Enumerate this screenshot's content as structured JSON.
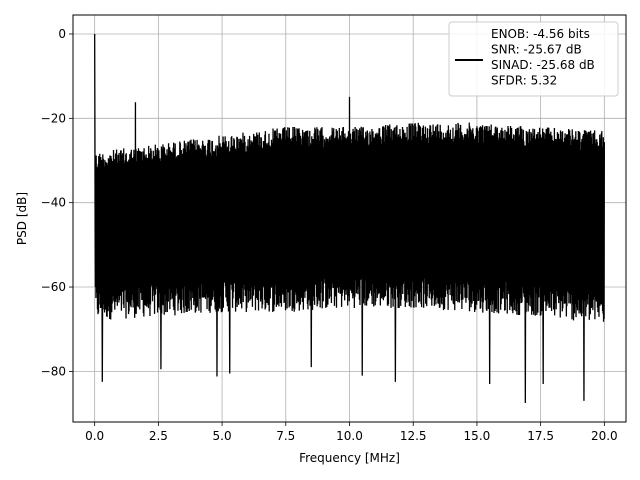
{
  "chart_data": {
    "type": "line",
    "title": "",
    "xlabel": "Frequency [MHz]",
    "ylabel": "PSD [dB]",
    "xlim": [
      -0.85,
      20.85
    ],
    "ylim": [
      -92,
      4.5
    ],
    "x_ticks": [
      0.0,
      2.5,
      5.0,
      7.5,
      10.0,
      12.5,
      15.0,
      17.5,
      20.0
    ],
    "x_tick_labels": [
      "0.0",
      "2.5",
      "5.0",
      "7.5",
      "10.0",
      "12.5",
      "15.0",
      "17.5",
      "20.0"
    ],
    "y_ticks": [
      0,
      -20,
      -40,
      -60,
      -80
    ],
    "y_tick_labels": [
      "0",
      "−20",
      "−40",
      "−60",
      "−80"
    ],
    "grid": true,
    "legend_position": "top-right",
    "legend_entries": [
      "ENOB: -4.56 bits",
      "SNR: -25.67 dB",
      "SINAD: -25.68 dB",
      "SFDR: 5.32"
    ],
    "line_color": "#000000",
    "series": [
      {
        "x_range": [
          0,
          20
        ],
        "points": 2000,
        "envelope_upper": [
          [
            0,
            -28
          ],
          [
            2.5,
            -26
          ],
          [
            5,
            -24
          ],
          [
            7.5,
            -22
          ],
          [
            10,
            -22
          ],
          [
            12.5,
            -21
          ],
          [
            15,
            -21
          ],
          [
            17.5,
            -22
          ],
          [
            20,
            -23
          ]
        ],
        "envelope_lower": [
          [
            0,
            -68
          ],
          [
            2.5,
            -67
          ],
          [
            5,
            -66
          ],
          [
            7.5,
            -66
          ],
          [
            10,
            -65
          ],
          [
            12.5,
            -65
          ],
          [
            15,
            -66
          ],
          [
            17.5,
            -67
          ],
          [
            20,
            -69
          ]
        ],
        "peaks": [
          {
            "x": 0.0,
            "y": 0.0
          },
          {
            "x": 1.6,
            "y": -16.2
          },
          {
            "x": 10.0,
            "y": -14.9
          }
        ],
        "dips": [
          {
            "x": 0.3,
            "y": -82.5
          },
          {
            "x": 2.6,
            "y": -79.5
          },
          {
            "x": 4.8,
            "y": -81.2
          },
          {
            "x": 5.3,
            "y": -80.5
          },
          {
            "x": 8.5,
            "y": -79.0
          },
          {
            "x": 10.5,
            "y": -81.0
          },
          {
            "x": 11.8,
            "y": -82.5
          },
          {
            "x": 15.5,
            "y": -83.0
          },
          {
            "x": 16.9,
            "y": -87.5
          },
          {
            "x": 17.6,
            "y": -83.0
          },
          {
            "x": 19.2,
            "y": -87.0
          }
        ]
      }
    ]
  }
}
